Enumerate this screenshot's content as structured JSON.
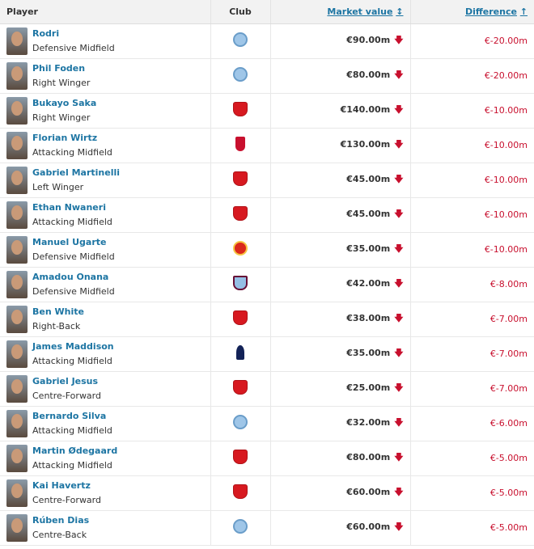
{
  "headers": {
    "player": "Player",
    "club": "Club",
    "market_value": "Market value",
    "market_value_sort_icon": "↕",
    "difference": "Difference",
    "difference_sort_icon": "↑"
  },
  "colors": {
    "link": "#1d75a3",
    "negative": "#c8102e"
  },
  "rows": [
    {
      "name": "Rodri",
      "position": "Defensive Midfield",
      "club": "mcity",
      "market_value": "€90.00m",
      "trend": "down",
      "difference": "€-20.00m"
    },
    {
      "name": "Phil Foden",
      "position": "Right Winger",
      "club": "mcity",
      "market_value": "€80.00m",
      "trend": "down",
      "difference": "€-20.00m"
    },
    {
      "name": "Bukayo Saka",
      "position": "Right Winger",
      "club": "ars",
      "market_value": "€140.00m",
      "trend": "down",
      "difference": "€-10.00m"
    },
    {
      "name": "Florian Wirtz",
      "position": "Attacking Midfield",
      "club": "liv",
      "market_value": "€130.00m",
      "trend": "down",
      "difference": "€-10.00m"
    },
    {
      "name": "Gabriel Martinelli",
      "position": "Left Winger",
      "club": "ars",
      "market_value": "€45.00m",
      "trend": "down",
      "difference": "€-10.00m"
    },
    {
      "name": "Ethan Nwaneri",
      "position": "Attacking Midfield",
      "club": "ars",
      "market_value": "€45.00m",
      "trend": "down",
      "difference": "€-10.00m"
    },
    {
      "name": "Manuel Ugarte",
      "position": "Defensive Midfield",
      "club": "mun",
      "market_value": "€35.00m",
      "trend": "down",
      "difference": "€-10.00m"
    },
    {
      "name": "Amadou Onana",
      "position": "Defensive Midfield",
      "club": "avl",
      "market_value": "€42.00m",
      "trend": "down",
      "difference": "€-8.00m"
    },
    {
      "name": "Ben White",
      "position": "Right-Back",
      "club": "ars",
      "market_value": "€38.00m",
      "trend": "down",
      "difference": "€-7.00m"
    },
    {
      "name": "James Maddison",
      "position": "Attacking Midfield",
      "club": "tot",
      "market_value": "€35.00m",
      "trend": "down",
      "difference": "€-7.00m"
    },
    {
      "name": "Gabriel Jesus",
      "position": "Centre-Forward",
      "club": "ars",
      "market_value": "€25.00m",
      "trend": "down",
      "difference": "€-7.00m"
    },
    {
      "name": "Bernardo Silva",
      "position": "Attacking Midfield",
      "club": "mcity",
      "market_value": "€32.00m",
      "trend": "down",
      "difference": "€-6.00m"
    },
    {
      "name": "Martin Ødegaard",
      "position": "Attacking Midfield",
      "club": "ars",
      "market_value": "€80.00m",
      "trend": "down",
      "difference": "€-5.00m"
    },
    {
      "name": "Kai Havertz",
      "position": "Centre-Forward",
      "club": "ars",
      "market_value": "€60.00m",
      "trend": "down",
      "difference": "€-5.00m"
    },
    {
      "name": "Rúben Dias",
      "position": "Centre-Back",
      "club": "mcity",
      "market_value": "€60.00m",
      "trend": "down",
      "difference": "€-5.00m"
    }
  ]
}
